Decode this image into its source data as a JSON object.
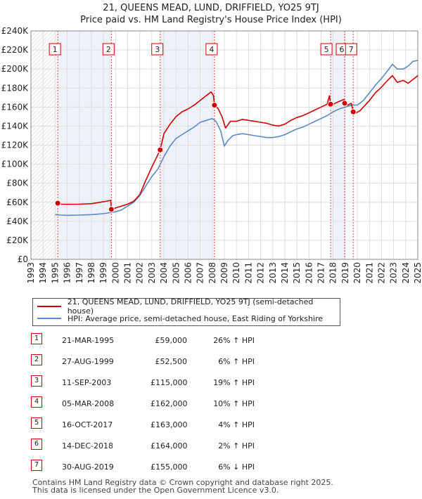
{
  "title": {
    "line1": "21, QUEENS MEAD, LUND, DRIFFIELD, YO25 9TJ",
    "line2": "Price paid vs. HM Land Registry's House Price Index (HPI)"
  },
  "legend": {
    "property": "21, QUEENS MEAD, LUND, DRIFFIELD, YO25 9TJ (semi-detached house)",
    "hpi": "HPI: Average price, semi-detached house, East Riding of Yorkshire"
  },
  "colors": {
    "property": "#cc0000",
    "hpi": "#5b8ac4",
    "grid": "#dddddd",
    "shade": "#eef2f8"
  },
  "sales": [
    {
      "num": "1",
      "date": "21-MAR-1995",
      "price": "£59,000",
      "pct": "26% ↑ HPI"
    },
    {
      "num": "2",
      "date": "27-AUG-1999",
      "price": "£52,500",
      "pct": "6% ↑ HPI"
    },
    {
      "num": "3",
      "date": "11-SEP-2003",
      "price": "£115,000",
      "pct": "19% ↑ HPI"
    },
    {
      "num": "4",
      "date": "05-MAR-2008",
      "price": "£162,000",
      "pct": "10% ↑ HPI"
    },
    {
      "num": "5",
      "date": "16-OCT-2017",
      "price": "£163,000",
      "pct": "4% ↑ HPI"
    },
    {
      "num": "6",
      "date": "14-DEC-2018",
      "price": "£164,000",
      "pct": "2% ↑ HPI"
    },
    {
      "num": "7",
      "date": "30-AUG-2019",
      "price": "£155,000",
      "pct": "6% ↓ HPI"
    }
  ],
  "footer": {
    "line1": "Contains HM Land Registry data © Crown copyright and database right 2025.",
    "line2": "This data is licensed under the Open Government Licence v3.0."
  },
  "chart_data": {
    "type": "line",
    "xlim": [
      1993,
      2025
    ],
    "ylim": [
      0,
      240000
    ],
    "y_ticks": [
      0,
      20000,
      40000,
      60000,
      80000,
      100000,
      120000,
      140000,
      160000,
      180000,
      200000,
      220000,
      240000
    ],
    "y_tick_labels": [
      "£0",
      "£20K",
      "£40K",
      "£60K",
      "£80K",
      "£100K",
      "£120K",
      "£140K",
      "£160K",
      "£180K",
      "£200K",
      "£220K",
      "£240K"
    ],
    "x_ticks": [
      1993,
      1994,
      1995,
      1996,
      1997,
      1998,
      1999,
      2000,
      2001,
      2002,
      2003,
      2004,
      2005,
      2006,
      2007,
      2008,
      2009,
      2010,
      2011,
      2012,
      2013,
      2014,
      2015,
      2016,
      2017,
      2018,
      2019,
      2020,
      2021,
      2022,
      2023,
      2024,
      2025
    ],
    "x_tick_labels": [
      "1993",
      "1994",
      "1995",
      "1996",
      "1997",
      "1998",
      "1999",
      "2000",
      "2001",
      "2002",
      "2003",
      "2004",
      "2005",
      "2006",
      "2007",
      "2008",
      "2009",
      "2010",
      "2011",
      "2012",
      "2013",
      "2014",
      "2015",
      "2016",
      "2017",
      "2018",
      "2019",
      "2020",
      "2021",
      "2022",
      "2023",
      "2024",
      "2025"
    ],
    "grid": true,
    "hatched_ranges": [
      [
        1993,
        1995.22
      ]
    ],
    "shaded_ranges": [
      [
        1995.22,
        1999.65
      ],
      [
        2003.69,
        2008.18
      ],
      [
        2017.79,
        2018.95
      ]
    ],
    "sale_points": [
      {
        "label": "1",
        "x": 1995.22,
        "y": 59000
      },
      {
        "label": "2",
        "x": 1999.65,
        "y": 52500
      },
      {
        "label": "3",
        "x": 2003.69,
        "y": 115000
      },
      {
        "label": "4",
        "x": 2008.18,
        "y": 162000
      },
      {
        "label": "5",
        "x": 2017.79,
        "y": 163000
      },
      {
        "label": "6",
        "x": 2018.95,
        "y": 164000
      },
      {
        "label": "7",
        "x": 2019.66,
        "y": 155000
      }
    ],
    "series": [
      {
        "name": "21, QUEENS MEAD, LUND, DRIFFIELD, YO25 9TJ (semi-detached house)",
        "color": "#cc0000",
        "points": [
          [
            1995.0,
            59000
          ],
          [
            1995.22,
            59000
          ],
          [
            1995.5,
            58000
          ],
          [
            1996,
            57800
          ],
          [
            1997,
            58000
          ],
          [
            1998,
            58500
          ],
          [
            1999,
            60500
          ],
          [
            1999.6,
            62000
          ],
          [
            1999.65,
            52500
          ],
          [
            2000,
            54000
          ],
          [
            2000.5,
            56000
          ],
          [
            2001,
            58000
          ],
          [
            2001.5,
            61000
          ],
          [
            2002,
            68000
          ],
          [
            2002.5,
            83000
          ],
          [
            2003,
            97000
          ],
          [
            2003.5,
            110000
          ],
          [
            2003.69,
            115000
          ],
          [
            2004,
            132000
          ],
          [
            2004.5,
            142000
          ],
          [
            2005,
            150000
          ],
          [
            2005.5,
            155000
          ],
          [
            2006,
            158000
          ],
          [
            2006.5,
            162000
          ],
          [
            2007,
            167000
          ],
          [
            2007.5,
            172000
          ],
          [
            2007.9,
            176000
          ],
          [
            2008.1,
            172000
          ],
          [
            2008.18,
            162000
          ],
          [
            2008.5,
            158000
          ],
          [
            2008.8,
            150000
          ],
          [
            2009.1,
            138000
          ],
          [
            2009.5,
            145000
          ],
          [
            2010,
            145000
          ],
          [
            2010.5,
            147000
          ],
          [
            2011,
            146000
          ],
          [
            2011.5,
            145000
          ],
          [
            2012,
            144000
          ],
          [
            2012.5,
            143000
          ],
          [
            2013,
            141000
          ],
          [
            2013.5,
            140000
          ],
          [
            2014,
            142000
          ],
          [
            2014.5,
            146000
          ],
          [
            2015,
            149000
          ],
          [
            2015.5,
            151000
          ],
          [
            2016,
            154000
          ],
          [
            2016.5,
            157000
          ],
          [
            2017,
            160000
          ],
          [
            2017.5,
            163000
          ],
          [
            2017.7,
            172000
          ],
          [
            2017.79,
            163000
          ],
          [
            2018,
            163000
          ],
          [
            2018.5,
            166000
          ],
          [
            2018.9,
            168000
          ],
          [
            2018.95,
            164000
          ],
          [
            2019.2,
            162000
          ],
          [
            2019.5,
            164000
          ],
          [
            2019.66,
            155000
          ],
          [
            2019.9,
            154000
          ],
          [
            2020.2,
            156000
          ],
          [
            2020.5,
            160000
          ],
          [
            2021,
            167000
          ],
          [
            2021.5,
            175000
          ],
          [
            2022,
            181000
          ],
          [
            2022.5,
            188000
          ],
          [
            2022.9,
            193000
          ],
          [
            2023.3,
            186000
          ],
          [
            2023.8,
            188000
          ],
          [
            2024.2,
            185000
          ],
          [
            2024.6,
            189000
          ],
          [
            2025,
            193000
          ]
        ]
      },
      {
        "name": "HPI: Average price, semi-detached house, East Riding of Yorkshire",
        "color": "#5b8ac4",
        "points": [
          [
            1995.0,
            47000
          ],
          [
            1995.5,
            46500
          ],
          [
            1996,
            46200
          ],
          [
            1997,
            46500
          ],
          [
            1998,
            47000
          ],
          [
            1999,
            48000
          ],
          [
            2000,
            50000
          ],
          [
            2000.5,
            52000
          ],
          [
            2001,
            56000
          ],
          [
            2001.5,
            60000
          ],
          [
            2002,
            67000
          ],
          [
            2002.5,
            77000
          ],
          [
            2003,
            87000
          ],
          [
            2003.5,
            95000
          ],
          [
            2004,
            108000
          ],
          [
            2004.5,
            119000
          ],
          [
            2005,
            127000
          ],
          [
            2005.5,
            131000
          ],
          [
            2006,
            135000
          ],
          [
            2006.5,
            139000
          ],
          [
            2007,
            144000
          ],
          [
            2007.5,
            146000
          ],
          [
            2008,
            148000
          ],
          [
            2008.3,
            145000
          ],
          [
            2008.7,
            135000
          ],
          [
            2009.0,
            119000
          ],
          [
            2009.3,
            125000
          ],
          [
            2009.7,
            130000
          ],
          [
            2010,
            131000
          ],
          [
            2010.5,
            132000
          ],
          [
            2011,
            131000
          ],
          [
            2011.5,
            130000
          ],
          [
            2012,
            129000
          ],
          [
            2012.5,
            128000
          ],
          [
            2013,
            128000
          ],
          [
            2013.5,
            129000
          ],
          [
            2014,
            131000
          ],
          [
            2014.5,
            134000
          ],
          [
            2015,
            137000
          ],
          [
            2015.5,
            139000
          ],
          [
            2016,
            142000
          ],
          [
            2016.5,
            145000
          ],
          [
            2017,
            148000
          ],
          [
            2017.5,
            151000
          ],
          [
            2018,
            155000
          ],
          [
            2018.5,
            158000
          ],
          [
            2019,
            160000
          ],
          [
            2019.5,
            162000
          ],
          [
            2020,
            162000
          ],
          [
            2020.5,
            167000
          ],
          [
            2021,
            175000
          ],
          [
            2021.5,
            183000
          ],
          [
            2022,
            190000
          ],
          [
            2022.5,
            198000
          ],
          [
            2022.9,
            205000
          ],
          [
            2023.3,
            200000
          ],
          [
            2023.8,
            200000
          ],
          [
            2024.2,
            203000
          ],
          [
            2024.6,
            208000
          ],
          [
            2025,
            209000
          ]
        ]
      }
    ]
  }
}
